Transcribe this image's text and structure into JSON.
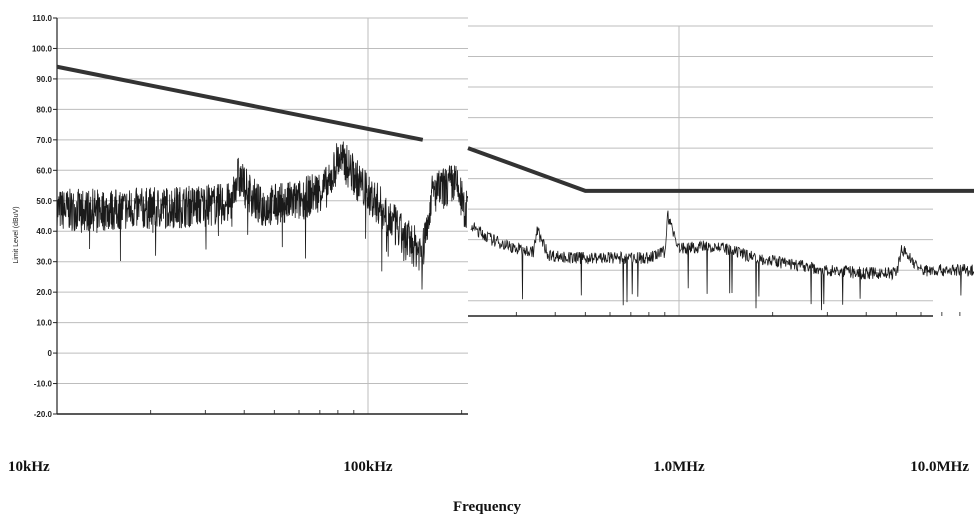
{
  "chart_data": {
    "type": "line",
    "title": "",
    "xlabel": "Frequency",
    "ylabel": "Limit Level (dBuV)",
    "x_scale": "log",
    "xlim_hz": [
      10000,
      10000000
    ],
    "ylim": [
      -20,
      110
    ],
    "y_ticks": [
      "110.0",
      "100.0",
      "90.0",
      "80.0",
      "70.0",
      "60.0",
      "50.0",
      "40.0",
      "30.0",
      "20.0",
      "10.0",
      "0",
      "-10.0",
      "-20.0"
    ],
    "y_tick_values": [
      110,
      100,
      90,
      80,
      70,
      60,
      50,
      40,
      30,
      20,
      10,
      0,
      -10,
      -20
    ],
    "x_ticks": [
      "10kHz",
      "100kHz",
      "1.0MHz",
      "10.0MHz"
    ],
    "x_tick_values_hz": [
      10000,
      100000,
      1000000,
      10000000
    ],
    "grid": true,
    "series": [
      {
        "name": "",
        "role": "limit",
        "color": "#333333",
        "x": [
          10000,
          150000,
          500000,
          10000000
        ],
        "y": [
          94,
          70,
          56,
          56
        ]
      },
      {
        "name": "",
        "role": "measurement",
        "color": "#1a1a1a",
        "x": [
          10000,
          15000,
          25000,
          36000,
          38000,
          45000,
          60000,
          75000,
          80000,
          85000,
          95000,
          110000,
          130000,
          150000,
          160000,
          175000,
          190000,
          210000,
          250000,
          300000,
          340000,
          350000,
          380000,
          450000,
          600000,
          800000,
          900000,
          920000,
          1000000,
          1300000,
          1500000,
          2000000,
          3000000,
          4000000,
          5000000,
          5200000,
          6000000,
          8000000,
          10000000
        ],
        "y": [
          47,
          47,
          48,
          49,
          58,
          48,
          50,
          55,
          64,
          62,
          55,
          48,
          38,
          33,
          52,
          54,
          56,
          45,
          40,
          37,
          36,
          43,
          35,
          34,
          34,
          34,
          36,
          48,
          37,
          38,
          36,
          33,
          30,
          29,
          29,
          37,
          30,
          30,
          30
        ]
      }
    ]
  }
}
